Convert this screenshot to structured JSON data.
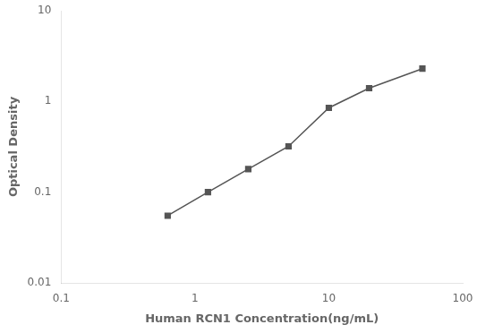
{
  "chart_data": {
    "type": "line",
    "x": [
      0.625,
      1.25,
      2.5,
      5,
      10,
      20,
      50
    ],
    "values": [
      0.055,
      0.1,
      0.18,
      0.32,
      0.85,
      1.4,
      2.3
    ],
    "xlabel": "Human RCN1 Concentration(ng/mL)",
    "ylabel": "Optical Density",
    "xlim": [
      0.1,
      100
    ],
    "ylim": [
      0.01,
      10
    ],
    "xticks": [
      0.1,
      1,
      10,
      100
    ],
    "yticks": [
      0.01,
      0.1,
      1,
      10
    ],
    "log": true,
    "grid": false,
    "color": "#555555",
    "marker": "square"
  }
}
